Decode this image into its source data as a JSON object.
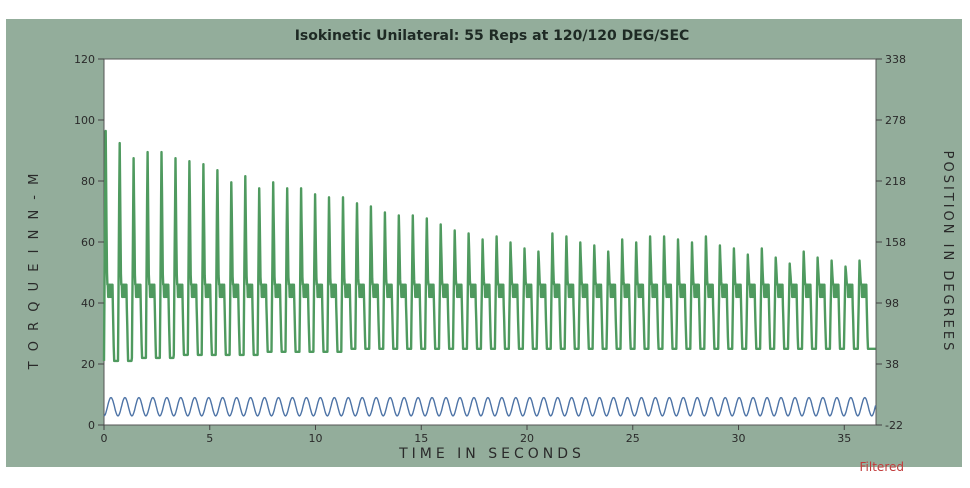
{
  "chart_data": {
    "type": "line",
    "title": "Isokinetic Unilateral: 55 Reps  at 120/120 DEG/SEC",
    "xlabel": "TIME   IN   SECONDS",
    "ylabel": "T O R Q U E   I N   N - M",
    "y2label": "POSITION IN DEGREES",
    "xlim": [
      0,
      36.5
    ],
    "ylim": [
      0,
      120
    ],
    "y2lim": [
      -22,
      338
    ],
    "x_ticks": [
      0,
      5,
      10,
      15,
      20,
      25,
      30,
      35
    ],
    "y_ticks": [
      0,
      20,
      40,
      60,
      80,
      100,
      120
    ],
    "y2_ticks": [
      -22,
      38,
      98,
      158,
      218,
      278,
      338
    ],
    "grid": false,
    "annotation": "Filtered",
    "colors": {
      "panel": "#93ad9b",
      "plot_bg": "#ffffff",
      "torque": "#4f9a5f",
      "position": "#4d73a6"
    },
    "reps": 55,
    "rep_period_s": 0.66,
    "series": [
      {
        "axis": "left",
        "label": "torque",
        "rep_peaks": [
          97,
          93,
          88,
          90,
          90,
          88,
          87,
          86,
          84,
          80,
          82,
          78,
          80,
          78,
          78,
          76,
          75,
          75,
          73,
          72,
          70,
          69,
          69,
          68,
          66,
          64,
          63,
          61,
          62,
          60,
          58,
          57,
          63,
          62,
          60,
          59,
          57,
          61,
          60,
          62,
          62,
          61,
          60,
          62,
          59,
          58,
          56,
          58,
          55,
          53,
          57,
          55,
          54,
          52,
          54
        ],
        "rep_troughs": [
          21,
          21,
          22,
          22,
          22,
          23,
          23,
          23,
          23,
          23,
          23,
          24,
          24,
          24,
          24,
          24,
          24,
          25,
          25,
          25,
          25,
          25,
          25,
          25,
          25,
          25,
          25,
          25,
          25,
          25,
          25,
          25,
          25,
          25,
          25,
          25,
          25,
          25,
          25,
          25,
          25,
          25,
          25,
          25,
          25,
          25,
          25,
          25,
          25,
          25,
          25,
          25,
          25,
          25,
          25
        ],
        "mid_band": [
          42,
          46
        ]
      },
      {
        "axis": "left",
        "label": "position",
        "min": 3,
        "max": 9
      }
    ]
  }
}
